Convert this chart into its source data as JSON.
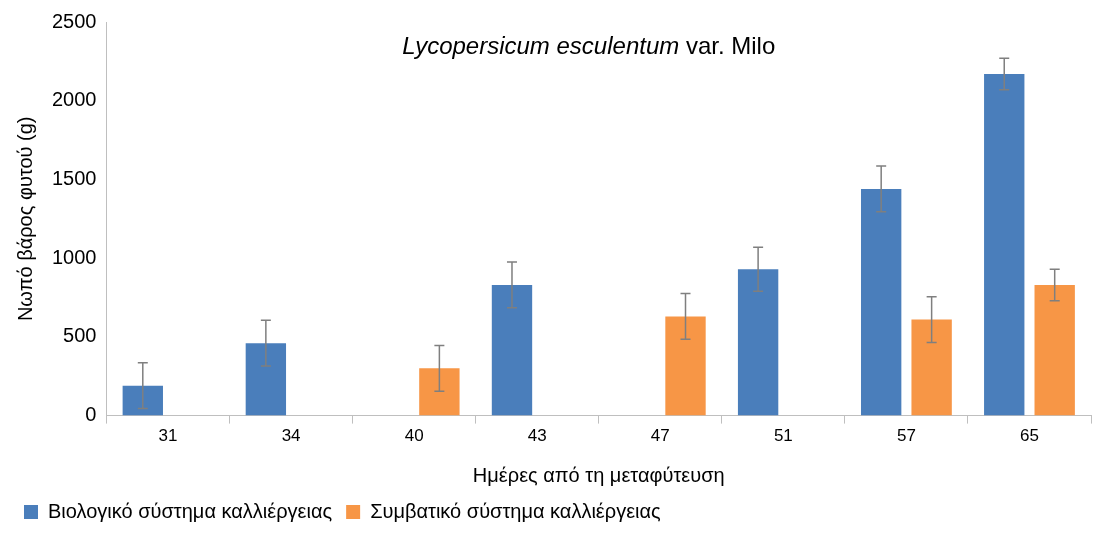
{
  "chart_data": {
    "type": "bar",
    "title": "Lycopersicum esculentum var. Milo",
    "xlabel": "Ημέρες από τη μεταφύτευση",
    "ylabel": "Νωπό βάρος φυτού (g)",
    "categories": [
      "31",
      "34",
      "40",
      "43",
      "47",
      "51",
      "57",
      "65"
    ],
    "series": [
      {
        "name": "Βιολογικό σύστημα καλλιέργειας",
        "color": "#4a7ebb",
        "values": [
          190,
          460,
          null,
          830,
          null,
          930,
          1440,
          2170
        ],
        "errors": [
          145,
          145,
          null,
          145,
          null,
          140,
          145,
          100
        ]
      },
      {
        "name": "Συμβατικό σύστημα καλλιέργειας",
        "color": "#f79646",
        "values": [
          null,
          null,
          300,
          null,
          630,
          null,
          610,
          830
        ],
        "errors": [
          null,
          null,
          145,
          null,
          145,
          null,
          145,
          100
        ]
      }
    ],
    "ylim": [
      0,
      2500
    ],
    "yticks": [
      0,
      500,
      1000,
      1500,
      2000,
      2500
    ],
    "grid": false,
    "legend": "bottom"
  }
}
